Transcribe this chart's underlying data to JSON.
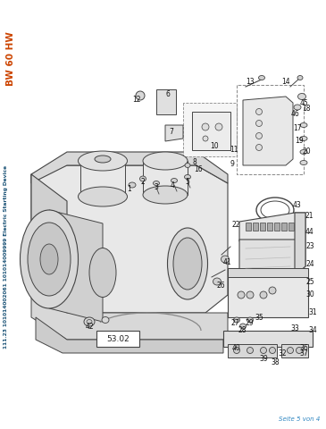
{
  "title": "BW 60 HW",
  "title_color": "#cc4400",
  "side_text": "111.23 101014002061 101014009999 Electric Starting Device",
  "side_text_color": "#1a5276",
  "bottom_right_text": "Seite 5 von 4",
  "bottom_right_color": "#2e86c1",
  "box_label": "53.02",
  "bg_color": "#ffffff",
  "line_color": "#444444",
  "fill_light": "#f0f0f0",
  "fill_mid": "#e0e0e0",
  "fill_dark": "#cccccc"
}
